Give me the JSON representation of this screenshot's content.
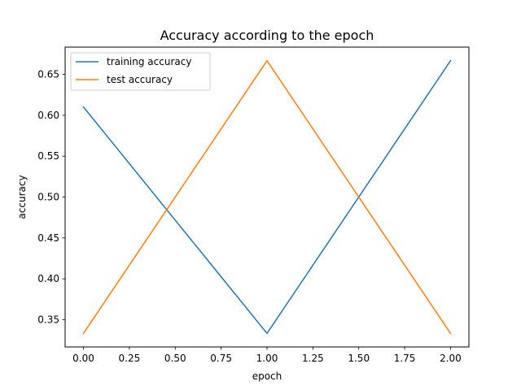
{
  "chart_data": {
    "type": "line",
    "title": "Accuracy according to the epoch",
    "xlabel": "epoch",
    "ylabel": "accuracy",
    "xlim": [
      -0.1,
      2.1
    ],
    "ylim": [
      0.3167,
      0.6833
    ],
    "xticks": [
      "0.00",
      "0.25",
      "0.50",
      "0.75",
      "1.00",
      "1.25",
      "1.50",
      "1.75",
      "2.00"
    ],
    "yticks": [
      "0.35",
      "0.40",
      "0.45",
      "0.50",
      "0.55",
      "0.60",
      "0.65"
    ],
    "x": [
      0,
      1,
      2
    ],
    "series": [
      {
        "name": "training accuracy",
        "values": [
          0.61,
          0.3333,
          0.6667
        ],
        "color": "#1f77b4"
      },
      {
        "name": "test accuracy",
        "values": [
          0.3333,
          0.6667,
          0.3333
        ],
        "color": "#ff7f0e"
      }
    ],
    "grid": false,
    "legend_position": "top-left"
  }
}
